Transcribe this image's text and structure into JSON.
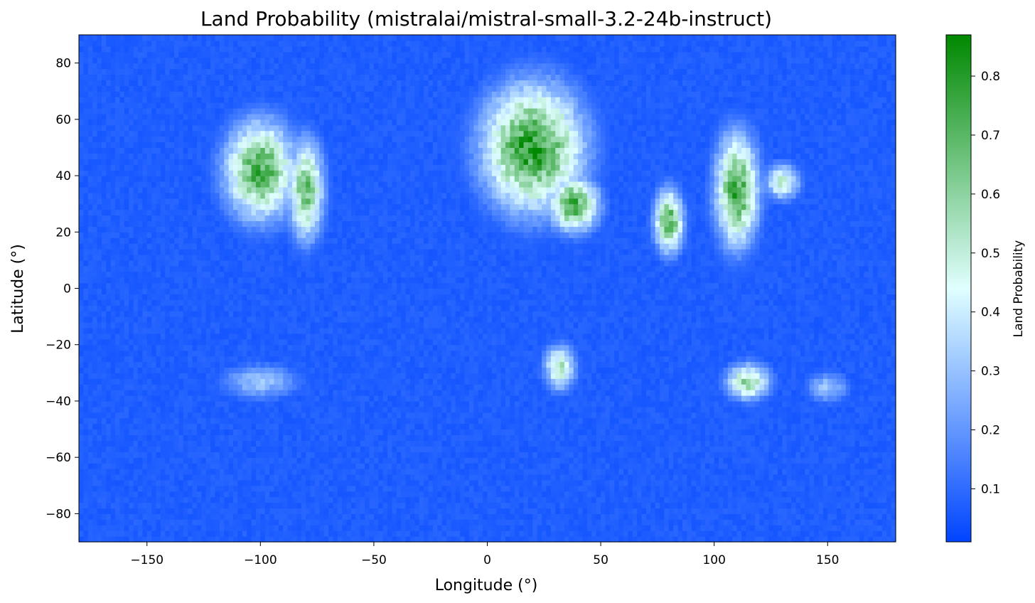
{
  "chart_data": {
    "type": "heatmap",
    "title": "Land Probability (mistralai/mistral-small-3.2-24b-instruct)",
    "xlabel": "Longitude (°)",
    "ylabel": "Latitude (°)",
    "xlim": [
      -180,
      180
    ],
    "ylim": [
      -90,
      90
    ],
    "x_ticks": [
      -150,
      -100,
      -50,
      0,
      50,
      100,
      150
    ],
    "y_ticks": [
      80,
      60,
      40,
      20,
      0,
      -20,
      -40,
      -60,
      -80
    ],
    "x_tick_labels": [
      "−150",
      "−100",
      "−50",
      "0",
      "50",
      "100",
      "150"
    ],
    "y_tick_labels": [
      "80",
      "60",
      "40",
      "20",
      "0",
      "−20",
      "−40",
      "−60",
      "−80"
    ],
    "grid": false,
    "colorbar": {
      "label": "Land Probability",
      "range": [
        0.01,
        0.87
      ],
      "ticks": [
        0.8,
        0.7,
        0.6,
        0.5,
        0.4,
        0.3,
        0.2,
        0.1
      ],
      "tick_labels": [
        "0.8",
        "0.7",
        "0.6",
        "0.5",
        "0.4",
        "0.3",
        "0.2",
        "0.1"
      ],
      "colors": [
        "#0044ff",
        "#e0ffff",
        "#008800"
      ]
    },
    "grid_resolution_deg": 2,
    "base_value": 0.05,
    "regions": [
      {
        "lon": -100,
        "lat": 42,
        "rlon": 20,
        "rlat": 22,
        "peak": 0.78
      },
      {
        "lon": -80,
        "lat": 35,
        "rlon": 10,
        "rlat": 22,
        "peak": 0.72
      },
      {
        "lon": 20,
        "lat": 50,
        "rlon": 28,
        "rlat": 28,
        "peak": 0.85
      },
      {
        "lon": 38,
        "lat": 30,
        "rlon": 14,
        "rlat": 12,
        "peak": 0.8
      },
      {
        "lon": 80,
        "lat": 24,
        "rlon": 8,
        "rlat": 14,
        "peak": 0.78
      },
      {
        "lon": 110,
        "lat": 35,
        "rlon": 12,
        "rlat": 25,
        "peak": 0.8
      },
      {
        "lon": 130,
        "lat": 38,
        "rlon": 10,
        "rlat": 8,
        "peak": 0.55
      },
      {
        "lon": 32,
        "lat": -28,
        "rlon": 9,
        "rlat": 10,
        "peak": 0.58
      },
      {
        "lon": 115,
        "lat": -33,
        "rlon": 12,
        "rlat": 8,
        "peak": 0.65
      },
      {
        "lon": -100,
        "lat": -33,
        "rlon": 22,
        "rlat": 8,
        "peak": 0.33
      },
      {
        "lon": 150,
        "lat": -35,
        "rlon": 12,
        "rlat": 7,
        "peak": 0.33
      }
    ]
  }
}
